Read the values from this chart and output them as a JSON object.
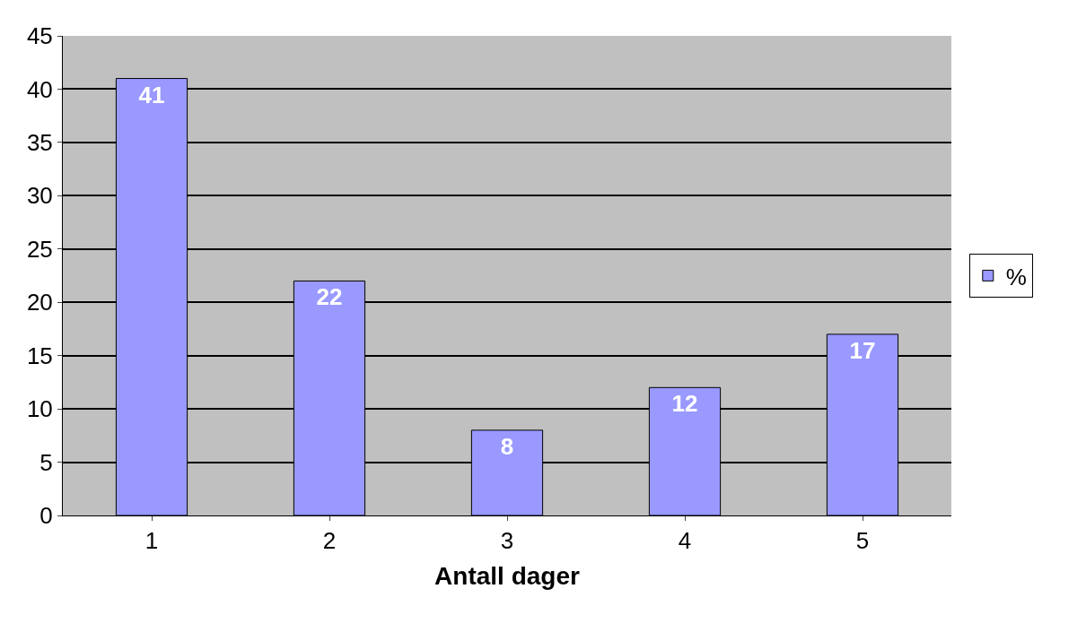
{
  "chart_data": {
    "type": "bar",
    "xlabel": "Antall dager",
    "categories": [
      "1",
      "2",
      "3",
      "4",
      "5"
    ],
    "series": [
      {
        "name": "%",
        "color": "#9999ff",
        "values": [
          41,
          22,
          8,
          12,
          17
        ]
      }
    ],
    "ylim": [
      0,
      45
    ],
    "yticks": [
      0,
      5,
      10,
      15,
      20,
      25,
      30,
      35,
      40,
      45
    ],
    "grid": "y",
    "legend": "right",
    "data_labels": true
  }
}
